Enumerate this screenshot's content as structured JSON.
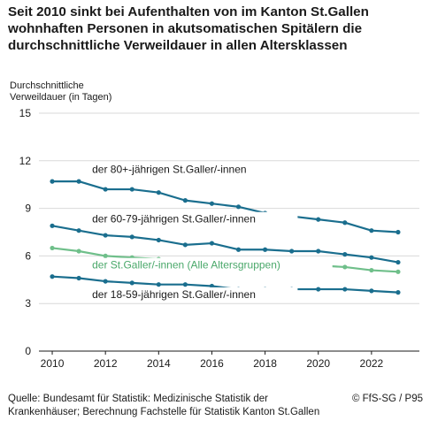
{
  "title_lines": [
    "Seit 2010 sinkt bei Aufenthalten von im Kanton St.Gallen",
    "wohnhaften Personen in akutsomatischen Spitälern die",
    "durchschnittliche Verweildauer in allen Altersklassen"
  ],
  "footer": {
    "source": "Quelle: Bundesamt für Statistik: Medizinische Statistik der Krankenhäuser; Berechnung Fachstelle für Statistik Kanton St.Gallen",
    "credit": "© FfS-SG / P95"
  },
  "chart_data": {
    "type": "line",
    "title": "Seit 2010 sinkt bei Aufenthalten von im Kanton St.Gallen wohnhaften Personen in akutsomatischen Spitälern die durchschnittliche Verweildauer in allen Altersklassen",
    "ylabel_lines": [
      "Durchschnittliche",
      "Verweildauer (in Tagen)"
    ],
    "xlabel": "",
    "x": [
      2010,
      2011,
      2012,
      2013,
      2014,
      2015,
      2016,
      2017,
      2018,
      2019,
      2020,
      2021,
      2022,
      2023
    ],
    "xticks": [
      "2010",
      "2012",
      "2014",
      "2016",
      "2018",
      "2020",
      "2022"
    ],
    "yticks": [
      "0",
      "3",
      "6",
      "9",
      "12",
      "15"
    ],
    "xlim": [
      2009.5,
      2023.8
    ],
    "ylim": [
      0,
      15
    ],
    "grid": "horizontal",
    "legend": "inline-labels",
    "series": [
      {
        "name": "der 80+-jährigen St.Galler/-innen",
        "color": "#1a6e8e",
        "values": [
          10.7,
          10.7,
          10.2,
          10.2,
          10.0,
          9.5,
          9.3,
          9.1,
          8.7,
          8.5,
          8.3,
          8.1,
          7.6,
          7.5
        ]
      },
      {
        "name": "der 60-79-jährigen St.Galler/-innen",
        "color": "#1a6e8e",
        "values": [
          7.9,
          7.6,
          7.3,
          7.2,
          7.0,
          6.7,
          6.8,
          6.4,
          6.4,
          6.3,
          6.3,
          6.1,
          5.9,
          5.6
        ]
      },
      {
        "name": "der St.Galler/-innen (Alle Altersgruppen)",
        "color": "#6fbf8a",
        "values": [
          6.5,
          6.3,
          6.0,
          5.9,
          5.8,
          5.7,
          5.7,
          5.6,
          5.5,
          5.5,
          5.4,
          5.3,
          5.1,
          5.0
        ]
      },
      {
        "name": "der 18-59-jährigen St.Galler/-innen",
        "color": "#1a6e8e",
        "values": [
          4.7,
          4.6,
          4.4,
          4.3,
          4.2,
          4.2,
          4.1,
          3.9,
          3.9,
          3.9,
          3.9,
          3.9,
          3.8,
          3.7
        ]
      }
    ]
  }
}
